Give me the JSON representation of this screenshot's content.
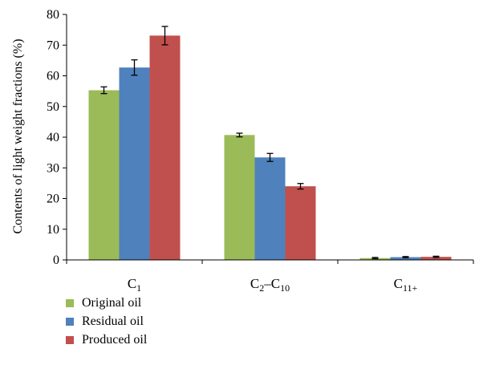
{
  "chart_data": {
    "type": "bar",
    "categories": [
      {
        "base": "C",
        "sub": "1",
        "suffix": "",
        "suffix_sub": ""
      },
      {
        "base": "C",
        "sub": "2",
        "suffix": "–C",
        "suffix_sub": "10"
      },
      {
        "base": "C",
        "sub": "11+",
        "suffix": "",
        "suffix_sub": ""
      }
    ],
    "category_labels": [
      "C1",
      "C2–C10",
      "C11+"
    ],
    "ylabel": "Contents of light weight fractions (%)",
    "xlabel": "",
    "ylim": [
      0,
      80
    ],
    "yticks": [
      0,
      10,
      20,
      30,
      40,
      50,
      60,
      70,
      80
    ],
    "grid": false,
    "legend_position": "bottom-left",
    "series": [
      {
        "name": "Original oil",
        "color": "#9bbb59",
        "values": [
          55.3,
          40.7,
          0.6
        ],
        "errors": [
          1.1,
          0.6,
          0.2
        ]
      },
      {
        "name": "Residual oil",
        "color": "#4f81bd",
        "values": [
          62.7,
          33.4,
          0.9
        ],
        "errors": [
          2.5,
          1.3,
          0.2
        ]
      },
      {
        "name": "Produced oil",
        "color": "#c0504d",
        "values": [
          73.1,
          24.0,
          1.0
        ],
        "errors": [
          3.0,
          0.9,
          0.2
        ]
      }
    ]
  }
}
